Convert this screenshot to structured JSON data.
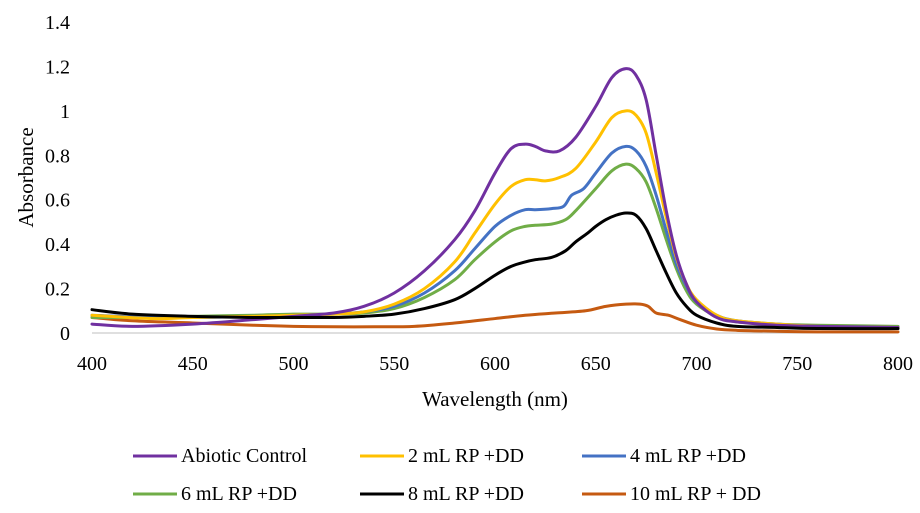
{
  "chart_data": {
    "type": "line",
    "title": "",
    "xlabel": "Wavelength (nm)",
    "ylabel": "Absorbance",
    "xlim": [
      400,
      800
    ],
    "ylim": [
      0,
      1.4
    ],
    "x_ticks": [
      400,
      450,
      500,
      550,
      600,
      650,
      700,
      750,
      800
    ],
    "x_tick_labels": [
      "400",
      "450",
      "500",
      "550",
      "600",
      "650",
      "700",
      "750",
      "800"
    ],
    "y_ticks": [
      0,
      0.2,
      0.4,
      0.6,
      0.8,
      1,
      1.2,
      1.4
    ],
    "y_tick_labels": [
      "0",
      "0.2",
      "0.4",
      "0.6",
      "0.8",
      "1",
      "1.2",
      "1.4"
    ],
    "grid": false,
    "legend_position": "bottom",
    "series": [
      {
        "name": "Abiotic Control",
        "color": "#7030A0",
        "points": [
          [
            400,
            0.04
          ],
          [
            420,
            0.03
          ],
          [
            450,
            0.04
          ],
          [
            480,
            0.06
          ],
          [
            500,
            0.075
          ],
          [
            520,
            0.09
          ],
          [
            535,
            0.12
          ],
          [
            550,
            0.18
          ],
          [
            565,
            0.28
          ],
          [
            580,
            0.42
          ],
          [
            590,
            0.55
          ],
          [
            600,
            0.72
          ],
          [
            608,
            0.83
          ],
          [
            615,
            0.85
          ],
          [
            620,
            0.84
          ],
          [
            625,
            0.82
          ],
          [
            632,
            0.82
          ],
          [
            640,
            0.88
          ],
          [
            650,
            1.02
          ],
          [
            658,
            1.15
          ],
          [
            665,
            1.19
          ],
          [
            670,
            1.16
          ],
          [
            675,
            1.05
          ],
          [
            680,
            0.8
          ],
          [
            685,
            0.55
          ],
          [
            690,
            0.35
          ],
          [
            695,
            0.22
          ],
          [
            700,
            0.14
          ],
          [
            710,
            0.07
          ],
          [
            720,
            0.05
          ],
          [
            740,
            0.035
          ],
          [
            760,
            0.03
          ],
          [
            800,
            0.025
          ]
        ]
      },
      {
        "name": "2 mL RP +DD",
        "color": "#FFC000",
        "points": [
          [
            400,
            0.08
          ],
          [
            430,
            0.065
          ],
          [
            450,
            0.07
          ],
          [
            480,
            0.075
          ],
          [
            500,
            0.08
          ],
          [
            520,
            0.085
          ],
          [
            535,
            0.095
          ],
          [
            550,
            0.13
          ],
          [
            565,
            0.2
          ],
          [
            580,
            0.32
          ],
          [
            590,
            0.45
          ],
          [
            600,
            0.58
          ],
          [
            608,
            0.66
          ],
          [
            615,
            0.69
          ],
          [
            620,
            0.69
          ],
          [
            625,
            0.685
          ],
          [
            632,
            0.7
          ],
          [
            640,
            0.74
          ],
          [
            650,
            0.86
          ],
          [
            658,
            0.97
          ],
          [
            665,
            1.0
          ],
          [
            670,
            0.98
          ],
          [
            675,
            0.9
          ],
          [
            680,
            0.72
          ],
          [
            685,
            0.52
          ],
          [
            690,
            0.34
          ],
          [
            695,
            0.22
          ],
          [
            700,
            0.15
          ],
          [
            710,
            0.08
          ],
          [
            720,
            0.055
          ],
          [
            740,
            0.04
          ],
          [
            760,
            0.03
          ],
          [
            800,
            0.025
          ]
        ]
      },
      {
        "name": "4 mL RP +DD",
        "color": "#4472C4",
        "points": [
          [
            400,
            0.08
          ],
          [
            430,
            0.07
          ],
          [
            450,
            0.07
          ],
          [
            480,
            0.075
          ],
          [
            500,
            0.08
          ],
          [
            520,
            0.085
          ],
          [
            535,
            0.095
          ],
          [
            550,
            0.12
          ],
          [
            565,
            0.18
          ],
          [
            580,
            0.28
          ],
          [
            590,
            0.38
          ],
          [
            600,
            0.48
          ],
          [
            608,
            0.53
          ],
          [
            615,
            0.555
          ],
          [
            620,
            0.555
          ],
          [
            628,
            0.56
          ],
          [
            634,
            0.57
          ],
          [
            638,
            0.62
          ],
          [
            644,
            0.65
          ],
          [
            650,
            0.72
          ],
          [
            658,
            0.81
          ],
          [
            665,
            0.84
          ],
          [
            670,
            0.82
          ],
          [
            675,
            0.75
          ],
          [
            680,
            0.62
          ],
          [
            685,
            0.46
          ],
          [
            690,
            0.31
          ],
          [
            695,
            0.21
          ],
          [
            700,
            0.14
          ],
          [
            710,
            0.08
          ],
          [
            720,
            0.055
          ],
          [
            740,
            0.04
          ],
          [
            760,
            0.03
          ],
          [
            800,
            0.025
          ]
        ]
      },
      {
        "name": "6 mL RP +DD",
        "color": "#70AD47",
        "points": [
          [
            400,
            0.07
          ],
          [
            430,
            0.07
          ],
          [
            450,
            0.075
          ],
          [
            480,
            0.08
          ],
          [
            500,
            0.085
          ],
          [
            520,
            0.085
          ],
          [
            535,
            0.09
          ],
          [
            550,
            0.11
          ],
          [
            565,
            0.16
          ],
          [
            580,
            0.24
          ],
          [
            590,
            0.33
          ],
          [
            600,
            0.41
          ],
          [
            608,
            0.46
          ],
          [
            615,
            0.48
          ],
          [
            620,
            0.485
          ],
          [
            628,
            0.49
          ],
          [
            635,
            0.51
          ],
          [
            640,
            0.55
          ],
          [
            650,
            0.65
          ],
          [
            658,
            0.73
          ],
          [
            665,
            0.76
          ],
          [
            670,
            0.74
          ],
          [
            675,
            0.68
          ],
          [
            680,
            0.56
          ],
          [
            685,
            0.42
          ],
          [
            690,
            0.29
          ],
          [
            695,
            0.19
          ],
          [
            700,
            0.13
          ],
          [
            710,
            0.075
          ],
          [
            720,
            0.05
          ],
          [
            740,
            0.04
          ],
          [
            760,
            0.035
          ],
          [
            800,
            0.03
          ]
        ]
      },
      {
        "name": "8 mL RP +DD",
        "color": "#000000",
        "points": [
          [
            400,
            0.105
          ],
          [
            420,
            0.085
          ],
          [
            450,
            0.075
          ],
          [
            480,
            0.07
          ],
          [
            500,
            0.07
          ],
          [
            520,
            0.07
          ],
          [
            535,
            0.075
          ],
          [
            550,
            0.085
          ],
          [
            565,
            0.11
          ],
          [
            580,
            0.15
          ],
          [
            590,
            0.2
          ],
          [
            600,
            0.26
          ],
          [
            608,
            0.3
          ],
          [
            615,
            0.32
          ],
          [
            620,
            0.33
          ],
          [
            628,
            0.34
          ],
          [
            635,
            0.37
          ],
          [
            640,
            0.41
          ],
          [
            646,
            0.45
          ],
          [
            650,
            0.48
          ],
          [
            655,
            0.51
          ],
          [
            660,
            0.53
          ],
          [
            665,
            0.54
          ],
          [
            670,
            0.53
          ],
          [
            675,
            0.47
          ],
          [
            680,
            0.37
          ],
          [
            685,
            0.27
          ],
          [
            690,
            0.18
          ],
          [
            695,
            0.12
          ],
          [
            700,
            0.08
          ],
          [
            710,
            0.045
          ],
          [
            720,
            0.03
          ],
          [
            740,
            0.025
          ],
          [
            760,
            0.02
          ],
          [
            800,
            0.02
          ]
        ]
      },
      {
        "name": "10 mL RP + DD",
        "color": "#C55A11",
        "points": [
          [
            400,
            0.07
          ],
          [
            420,
            0.055
          ],
          [
            450,
            0.045
          ],
          [
            480,
            0.035
          ],
          [
            500,
            0.03
          ],
          [
            520,
            0.028
          ],
          [
            540,
            0.028
          ],
          [
            560,
            0.03
          ],
          [
            580,
            0.045
          ],
          [
            600,
            0.065
          ],
          [
            615,
            0.08
          ],
          [
            630,
            0.09
          ],
          [
            645,
            0.1
          ],
          [
            655,
            0.12
          ],
          [
            665,
            0.13
          ],
          [
            672,
            0.13
          ],
          [
            676,
            0.12
          ],
          [
            680,
            0.09
          ],
          [
            686,
            0.08
          ],
          [
            692,
            0.06
          ],
          [
            700,
            0.035
          ],
          [
            710,
            0.018
          ],
          [
            720,
            0.012
          ],
          [
            740,
            0.008
          ],
          [
            760,
            0.005
          ],
          [
            800,
            0.005
          ]
        ]
      }
    ]
  }
}
